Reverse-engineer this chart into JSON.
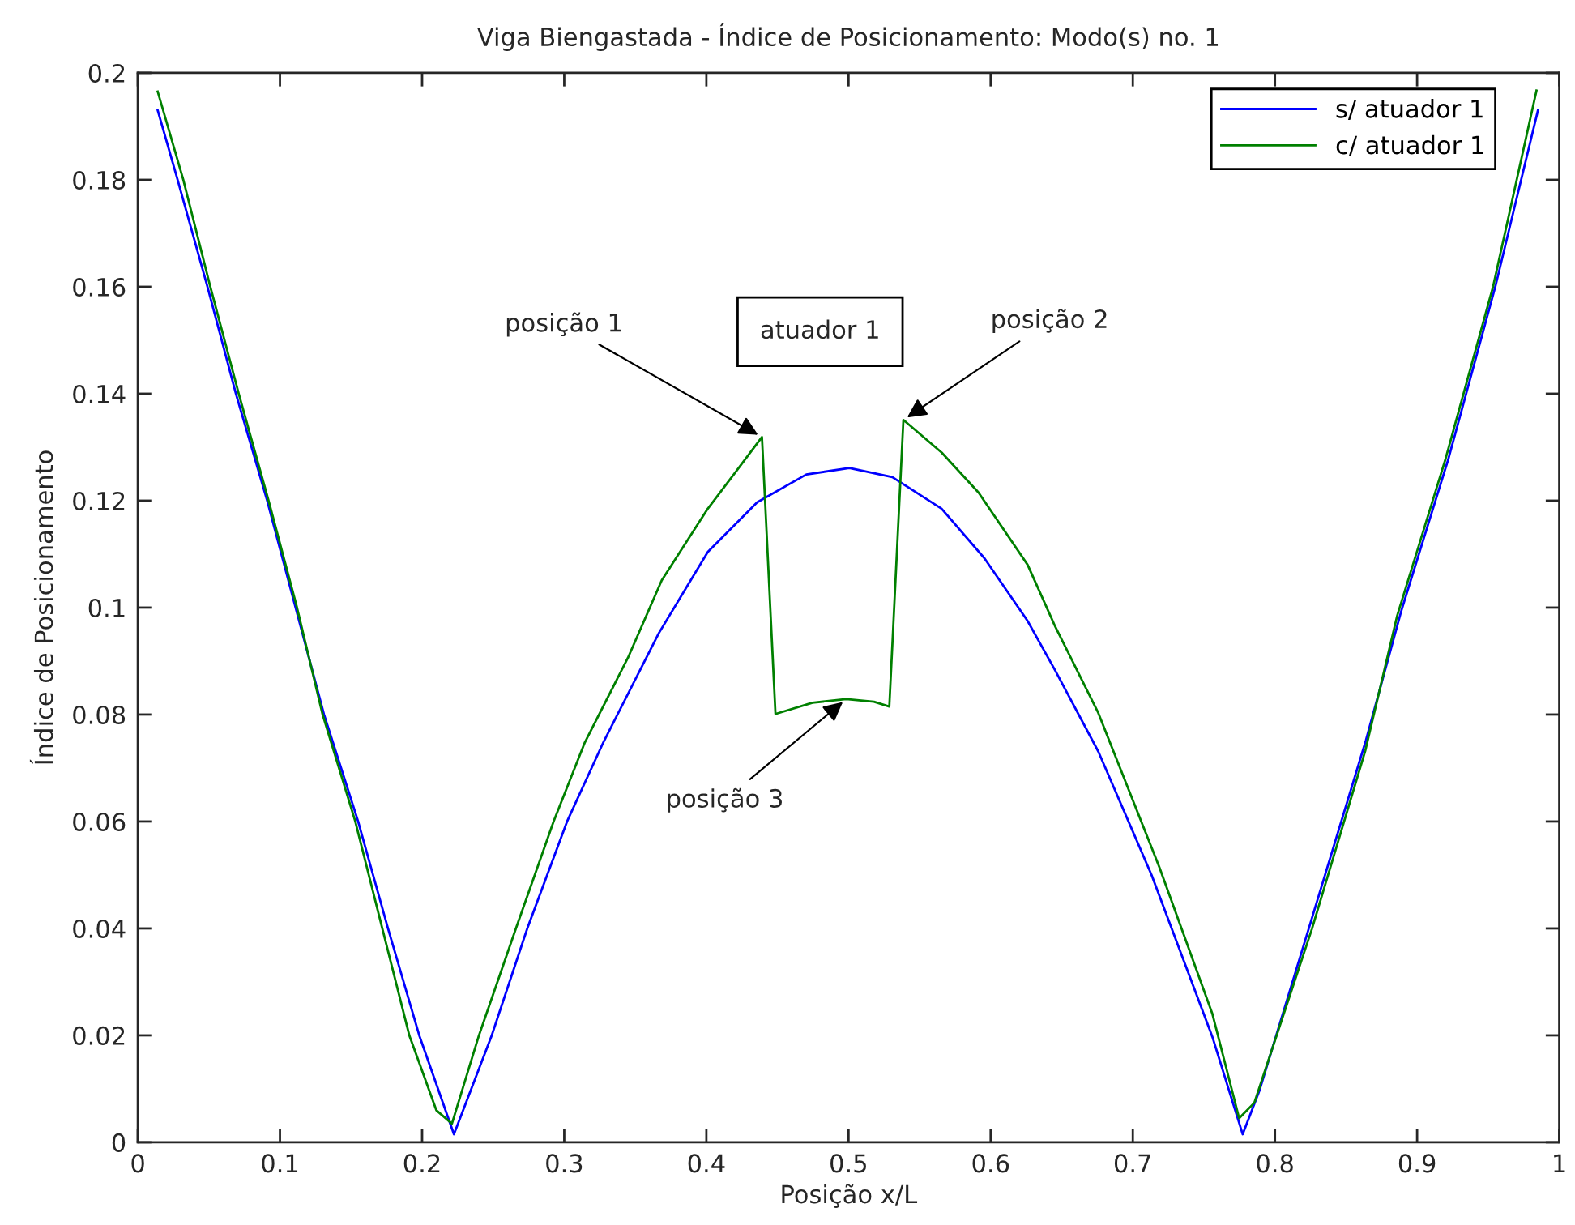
{
  "chart_data": {
    "type": "line",
    "title": "Viga Biengastada - Índice de Posicionamento: Modo(s) no. 1",
    "xlabel": "Posição x/L",
    "ylabel": "Índice de Posicionamento",
    "xlim": [
      0,
      1
    ],
    "ylim": [
      0,
      0.2
    ],
    "xticks": [
      0,
      0.1,
      0.2,
      0.3,
      0.4,
      0.5,
      0.6,
      0.7,
      0.8,
      0.9,
      1
    ],
    "yticks": [
      0,
      0.02,
      0.04,
      0.06,
      0.08,
      0.1,
      0.12,
      0.14,
      0.16,
      0.18,
      0.2
    ],
    "legend": "top right",
    "series": [
      {
        "name": "s/ atuador 1",
        "color": "#0000ff",
        "x": [
          0.014,
          0.028,
          0.049,
          0.069,
          0.091,
          0.111,
          0.131,
          0.155,
          0.176,
          0.198,
          0.2224,
          0.249,
          0.274,
          0.302,
          0.3275,
          0.3665,
          0.401,
          0.4357,
          0.4703,
          0.5006,
          0.5308,
          0.5655,
          0.5957,
          0.626,
          0.6455,
          0.6757,
          0.7132,
          0.756,
          0.7773,
          0.789,
          0.826,
          0.864,
          0.889,
          0.922,
          0.955,
          0.985
        ],
        "values": [
          0.193,
          0.18,
          0.16,
          0.14,
          0.12,
          0.1,
          0.08,
          0.06,
          0.04,
          0.02,
          0.0015,
          0.02,
          0.04,
          0.06,
          0.0748,
          0.0952,
          0.1104,
          0.1197,
          0.1249,
          0.1261,
          0.1244,
          0.1185,
          0.1092,
          0.0975,
          0.0882,
          0.0731,
          0.05,
          0.0197,
          0.0015,
          0.0096,
          0.0419,
          0.0752,
          0.0995,
          0.1278,
          0.16,
          0.193
        ]
      },
      {
        "name": "c/ atuador 1",
        "color": "#008000",
        "x": [
          0.014,
          0.032,
          0.051,
          0.071,
          0.092,
          0.112,
          0.13,
          0.153,
          0.172,
          0.191,
          0.21,
          0.221,
          0.24,
          0.266,
          0.2925,
          0.3145,
          0.3448,
          0.3686,
          0.401,
          0.4227,
          0.4391,
          0.4486,
          0.4746,
          0.4984,
          0.5179,
          0.5287,
          0.5386,
          0.5655,
          0.5915,
          0.626,
          0.6455,
          0.6757,
          0.7186,
          0.756,
          0.7748,
          0.7855,
          0.826,
          0.8635,
          0.886,
          0.92,
          0.9535,
          0.984
        ],
        "values": [
          0.1965,
          0.18,
          0.16,
          0.14,
          0.12,
          0.1,
          0.08,
          0.06,
          0.04,
          0.02,
          0.006,
          0.0035,
          0.02,
          0.04,
          0.06,
          0.0748,
          0.0906,
          0.1051,
          0.1185,
          0.1261,
          0.1319,
          0.0801,
          0.0822,
          0.0829,
          0.0824,
          0.0815,
          0.1351,
          0.129,
          0.1215,
          0.108,
          0.0964,
          0.0803,
          0.0515,
          0.024,
          0.0045,
          0.0074,
          0.0399,
          0.0732,
          0.0985,
          0.1278,
          0.1601,
          0.1967
        ]
      }
    ],
    "annotations": [
      {
        "text": "posição 1",
        "x": 0.4391,
        "y": 0.1319
      },
      {
        "text": "posição 2",
        "x": 0.5386,
        "y": 0.1351
      },
      {
        "text": "posição 3",
        "x": 0.4984,
        "y": 0.0829
      },
      "atuador 1"
    ]
  }
}
